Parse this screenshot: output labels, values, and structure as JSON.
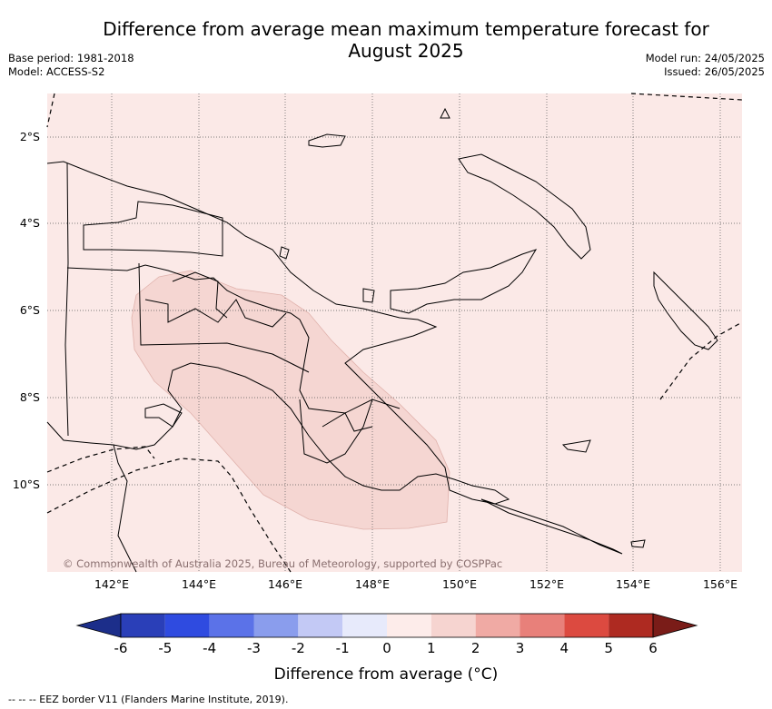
{
  "title": {
    "line1": "Difference from average mean maximum temperature forecast for",
    "line2": "August 2025"
  },
  "meta": {
    "base_period": "Base period: 1981-2018",
    "model": "Model: ACCESS-S2",
    "model_run": "Model run: 24/05/2025",
    "issued": "Issued: 26/05/2025"
  },
  "map": {
    "copyright": "© Commonwealth of Australia 2025, Bureau of Meteorology, supported by COSPPac",
    "lat_labels": [
      "2°S",
      "4°S",
      "6°S",
      "8°S",
      "10°S"
    ],
    "lon_labels": [
      "142°E",
      "144°E",
      "146°E",
      "148°E",
      "150°E",
      "152°E",
      "154°E",
      "156°E"
    ],
    "colors": {
      "background_bin": "#fbe9e7",
      "highlight_bin": "#f5d6d2",
      "land_outline": "#000000",
      "grid": "#555555"
    }
  },
  "colorbar": {
    "ticks": [
      "-6",
      "-5",
      "-4",
      "-3",
      "-2",
      "-1",
      "0",
      "1",
      "2",
      "3",
      "4",
      "5",
      "6"
    ],
    "colors": [
      "#1c2e8a",
      "#2a3fb8",
      "#2f4be0",
      "#5b72e8",
      "#8a9ded",
      "#c3c9f5",
      "#e7eafb",
      "#fdecea",
      "#f6d4d0",
      "#f0aaa4",
      "#e8807a",
      "#dc4a40",
      "#ae2a21",
      "#7a1c18"
    ],
    "title": "Difference from average (°C)"
  },
  "footer": "--  --  -- EEZ border V11 (Flanders Marine Institute, 2019)."
}
